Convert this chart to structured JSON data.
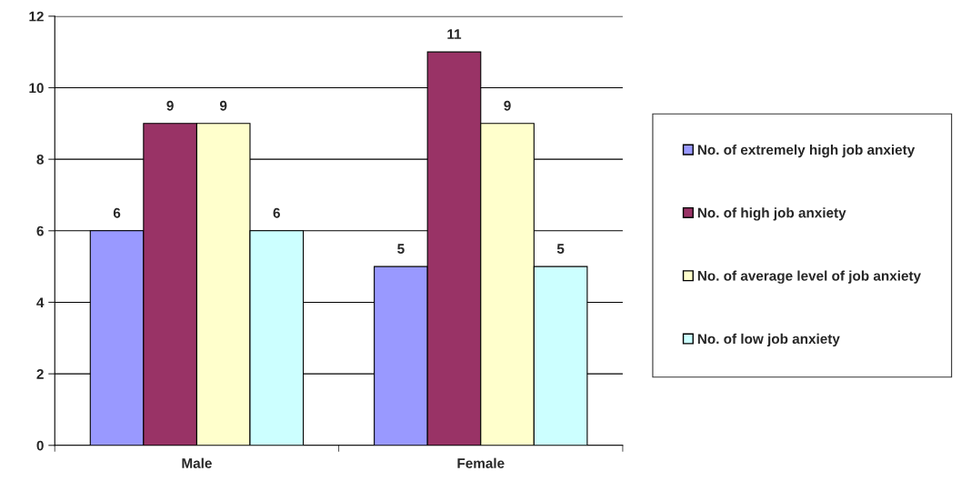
{
  "chart_data": {
    "type": "bar",
    "categories": [
      "Male",
      "Female"
    ],
    "series": [
      {
        "name": "No. of extremely high job anxiety",
        "color": "#9999ff",
        "values": [
          6,
          5
        ]
      },
      {
        "name": "No. of high job anxiety",
        "color": "#993366",
        "values": [
          9,
          11
        ]
      },
      {
        "name": "No. of average level of job anxiety",
        "color": "#ffffcc",
        "values": [
          9,
          9
        ]
      },
      {
        "name": "No. of low job anxiety",
        "color": "#ccffff",
        "values": [
          6,
          5
        ]
      }
    ],
    "ylim": [
      0,
      12
    ],
    "yticks": [
      0,
      2,
      4,
      6,
      8,
      10,
      12
    ],
    "grid": "y",
    "legend": "right",
    "data_labels": true
  }
}
